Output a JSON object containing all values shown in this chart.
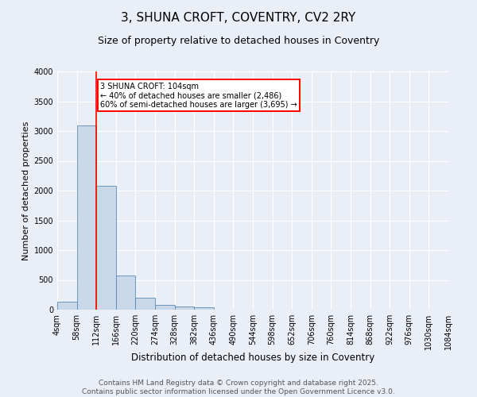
{
  "title": "3, SHUNA CROFT, COVENTRY, CV2 2RY",
  "subtitle": "Size of property relative to detached houses in Coventry",
  "xlabel": "Distribution of detached houses by size in Coventry",
  "ylabel": "Number of detached properties",
  "bar_values": [
    130,
    3100,
    2080,
    570,
    200,
    80,
    50,
    40,
    0,
    0,
    0,
    0,
    0,
    0,
    0,
    0,
    0,
    0,
    0,
    0
  ],
  "bin_labels": [
    "4sqm",
    "58sqm",
    "112sqm",
    "166sqm",
    "220sqm",
    "274sqm",
    "328sqm",
    "382sqm",
    "436sqm",
    "490sqm",
    "544sqm",
    "598sqm",
    "652sqm",
    "706sqm",
    "760sqm",
    "814sqm",
    "868sqm",
    "922sqm",
    "976sqm",
    "1030sqm",
    "1084sqm"
  ],
  "bar_color": "#c8d8e8",
  "bar_edge_color": "#5b8ab0",
  "vline_color": "red",
  "annotation_text": "3 SHUNA CROFT: 104sqm\n← 40% of detached houses are smaller (2,486)\n60% of semi-detached houses are larger (3,695) →",
  "annotation_box_color": "red",
  "annotation_text_color": "black",
  "annotation_bg_color": "white",
  "ylim": [
    0,
    4000
  ],
  "yticks": [
    0,
    500,
    1000,
    1500,
    2000,
    2500,
    3000,
    3500,
    4000
  ],
  "bg_color": "#eaeff7",
  "plot_bg_color": "#eaeff7",
  "grid_color": "white",
  "footer_text": "Contains HM Land Registry data © Crown copyright and database right 2025.\nContains public sector information licensed under the Open Government Licence v3.0.",
  "title_fontsize": 11,
  "subtitle_fontsize": 9,
  "xlabel_fontsize": 8.5,
  "ylabel_fontsize": 8,
  "tick_fontsize": 7,
  "footer_fontsize": 6.5,
  "annotation_fontsize": 7
}
